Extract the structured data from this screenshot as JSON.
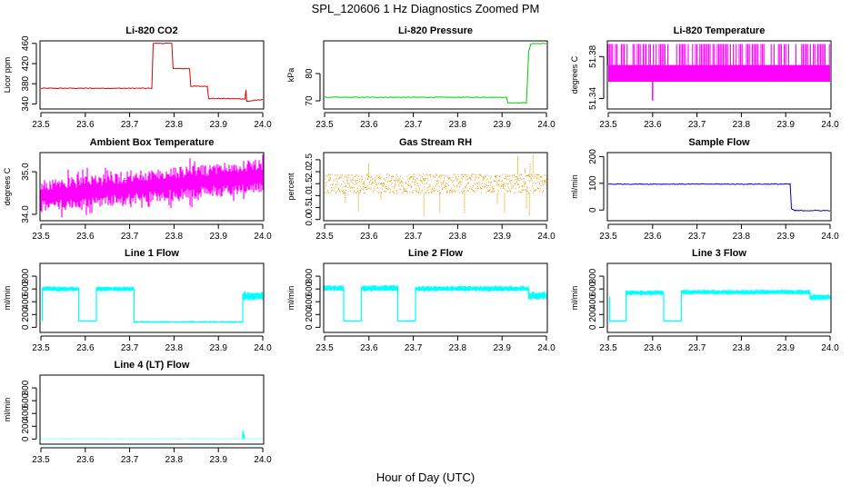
{
  "figure": {
    "title": "SPL_120606  1 Hz Diagnostics Zoomed PM",
    "xlabel": "Hour of Day (UTC)"
  },
  "colors": {
    "red": "#e00000",
    "green": "#00cc00",
    "magenta": "#ff00ff",
    "orange": "#e69a00",
    "blue": "#0000cc",
    "cyan": "#00ffff"
  },
  "chart_data": [
    {
      "type": "line",
      "title": "Li-820 CO2",
      "ylabel": "Licor ppm",
      "color": "red",
      "xlim": [
        23.5,
        24.0
      ],
      "ylim": [
        330,
        465
      ],
      "noise": 0.8,
      "xticks": [
        "23.5",
        "23.6",
        "23.7",
        "23.8",
        "23.9",
        "24.0"
      ],
      "yticks": [
        {
          "v": 340,
          "l": "340"
        },
        {
          "v": 380,
          "l": "380"
        },
        {
          "v": 420,
          "l": "420"
        },
        {
          "v": 460,
          "l": "460"
        }
      ],
      "points": [
        [
          23.5,
          371
        ],
        [
          23.75,
          371
        ],
        [
          23.753,
          460
        ],
        [
          23.795,
          460
        ],
        [
          23.798,
          410
        ],
        [
          23.835,
          410
        ],
        [
          23.838,
          375
        ],
        [
          23.875,
          375
        ],
        [
          23.878,
          351
        ],
        [
          23.96,
          350
        ],
        [
          23.962,
          368
        ],
        [
          23.964,
          345
        ],
        [
          24.0,
          349
        ]
      ]
    },
    {
      "type": "line",
      "title": "Li-820 Pressure",
      "ylabel": "kPa",
      "color": "green",
      "xlim": [
        23.5,
        24.0
      ],
      "ylim": [
        67,
        92
      ],
      "noise": 0.1,
      "xticks": [
        "23.5",
        "23.6",
        "23.7",
        "23.8",
        "23.9",
        "24.0"
      ],
      "yticks": [
        {
          "v": 70,
          "l": "70"
        },
        {
          "v": 80,
          "l": "80"
        }
      ],
      "points": [
        [
          23.5,
          71.3
        ],
        [
          23.91,
          71.3
        ],
        [
          23.913,
          69.3
        ],
        [
          23.955,
          69.3
        ],
        [
          23.96,
          88
        ],
        [
          23.965,
          91
        ],
        [
          24.0,
          91
        ]
      ]
    },
    {
      "type": "band",
      "title": "Li-820 Temperature",
      "ylabel": "degrees C",
      "color": "magenta",
      "xlim": [
        23.5,
        24.0
      ],
      "ylim": [
        51.33,
        51.395
      ],
      "mode": "spiky",
      "xticks": [
        "23.5",
        "23.6",
        "23.7",
        "23.8",
        "23.9",
        "24.0"
      ],
      "yticks": [
        {
          "v": 51.34,
          "l": "51.34"
        },
        {
          "v": 51.38,
          "l": "51.38"
        }
      ],
      "band": [
        [
          23.5,
          51.356,
          51.372
        ],
        [
          24.0,
          51.356,
          51.372
        ]
      ],
      "spike_to": 51.392,
      "dip": [
        23.6,
        51.338
      ]
    },
    {
      "type": "band",
      "title": "Ambient Box Temperature",
      "ylabel": "degrees C",
      "color": "magenta",
      "xlim": [
        23.5,
        24.0
      ],
      "ylim": [
        33.85,
        35.45
      ],
      "mode": "dense",
      "xticks": [
        "23.5",
        "23.6",
        "23.7",
        "23.8",
        "23.9",
        "24.0"
      ],
      "yticks": [
        {
          "v": 34.0,
          "l": "34.0"
        },
        {
          "v": 35.0,
          "l": "35.0"
        }
      ],
      "band": [
        [
          23.5,
          34.05,
          34.8
        ],
        [
          24.0,
          34.5,
          35.3
        ]
      ]
    },
    {
      "type": "band",
      "title": "Gas Stream RH",
      "ylabel": "percent",
      "color": "orange",
      "xlim": [
        23.5,
        24.0
      ],
      "ylim": [
        -0.05,
        2.8
      ],
      "mode": "dots",
      "xticks": [
        "23.5",
        "23.6",
        "23.7",
        "23.8",
        "23.9",
        "24.0"
      ],
      "yticks": [
        {
          "v": 0.0,
          "l": "0.0"
        },
        {
          "v": 0.5,
          "l": "0.5"
        },
        {
          "v": 1.0,
          "l": "1.0"
        },
        {
          "v": 1.5,
          "l": "1.5"
        },
        {
          "v": 2.0,
          "l": "2.0"
        },
        {
          "v": 2.5,
          "l": "2.5"
        }
      ],
      "band": [
        [
          23.5,
          1.1,
          1.9
        ],
        [
          24.0,
          1.1,
          1.9
        ]
      ]
    },
    {
      "type": "line",
      "title": "Sample Flow",
      "ylabel": "ml/min",
      "color": "blue",
      "xlim": [
        23.5,
        24.0
      ],
      "ylim": [
        -40,
        215
      ],
      "noise": 1.5,
      "xticks": [
        "23.5",
        "23.6",
        "23.7",
        "23.8",
        "23.9",
        "24.0"
      ],
      "yticks": [
        {
          "v": 0,
          "l": "0"
        },
        {
          "v": 100,
          "l": "100"
        },
        {
          "v": 200,
          "l": "200"
        }
      ],
      "points": [
        [
          23.5,
          97
        ],
        [
          23.91,
          97
        ],
        [
          23.913,
          5
        ],
        [
          23.92,
          -2
        ],
        [
          24.0,
          -2
        ]
      ]
    },
    {
      "type": "flow",
      "title": "Line 1 Flow",
      "ylabel": "ml/min",
      "color": "cyan",
      "xlim": [
        23.5,
        24.0
      ],
      "ylim": [
        -80,
        1000
      ],
      "xticks": [
        "23.5",
        "23.6",
        "23.7",
        "23.8",
        "23.9",
        "24.0"
      ],
      "yticks": [
        {
          "v": 0,
          "l": "0"
        },
        {
          "v": 200,
          "l": "200"
        },
        {
          "v": 400,
          "l": "400"
        },
        {
          "v": 600,
          "l": "600"
        },
        {
          "v": 800,
          "l": "800"
        }
      ],
      "segments": [
        [
          23.5,
          23.503,
          100,
          100
        ],
        [
          23.503,
          23.585,
          560,
          640
        ],
        [
          23.585,
          23.625,
          85,
          110
        ],
        [
          23.625,
          23.71,
          560,
          640
        ],
        [
          23.71,
          23.955,
          70,
          100
        ],
        [
          23.955,
          24.0,
          420,
          560
        ]
      ]
    },
    {
      "type": "flow",
      "title": "Line 2 Flow",
      "ylabel": "ml/min",
      "color": "cyan",
      "xlim": [
        23.5,
        24.0
      ],
      "ylim": [
        -80,
        1000
      ],
      "xticks": [
        "23.5",
        "23.6",
        "23.7",
        "23.8",
        "23.9",
        "24.0"
      ],
      "yticks": [
        {
          "v": 0,
          "l": "0"
        },
        {
          "v": 200,
          "l": "200"
        },
        {
          "v": 400,
          "l": "400"
        },
        {
          "v": 600,
          "l": "600"
        },
        {
          "v": 800,
          "l": "800"
        }
      ],
      "segments": [
        [
          23.5,
          23.543,
          560,
          660
        ],
        [
          23.543,
          23.583,
          85,
          110
        ],
        [
          23.583,
          23.665,
          560,
          660
        ],
        [
          23.665,
          23.705,
          85,
          110
        ],
        [
          23.705,
          23.96,
          560,
          650
        ],
        [
          23.96,
          24.0,
          430,
          560
        ]
      ]
    },
    {
      "type": "flow",
      "title": "Line 3 Flow",
      "ylabel": "ml/min",
      "color": "cyan",
      "xlim": [
        23.5,
        24.0
      ],
      "ylim": [
        -80,
        1000
      ],
      "xticks": [
        "23.5",
        "23.6",
        "23.7",
        "23.8",
        "23.9",
        "24.0"
      ],
      "yticks": [
        {
          "v": 0,
          "l": "0"
        },
        {
          "v": 200,
          "l": "200"
        },
        {
          "v": 400,
          "l": "400"
        },
        {
          "v": 600,
          "l": "600"
        },
        {
          "v": 800,
          "l": "800"
        }
      ],
      "segments": [
        [
          23.5,
          23.503,
          480,
          480
        ],
        [
          23.503,
          23.54,
          85,
          110
        ],
        [
          23.54,
          23.625,
          500,
          580
        ],
        [
          23.625,
          23.665,
          85,
          110
        ],
        [
          23.665,
          23.955,
          510,
          590
        ],
        [
          23.955,
          24.0,
          420,
          520
        ]
      ]
    },
    {
      "type": "flow",
      "title": "Line 4 (LT) Flow",
      "ylabel": "ml/min",
      "color": "cyan",
      "xlim": [
        23.5,
        24.0
      ],
      "ylim": [
        -80,
        1000
      ],
      "xticks": [
        "23.5",
        "23.6",
        "23.7",
        "23.8",
        "23.9",
        "24.0"
      ],
      "yticks": [
        {
          "v": 0,
          "l": "0"
        },
        {
          "v": 200,
          "l": "200"
        },
        {
          "v": 400,
          "l": "400"
        },
        {
          "v": 600,
          "l": "600"
        },
        {
          "v": 800,
          "l": "800"
        }
      ],
      "segments": [
        [
          23.5,
          23.955,
          0,
          8
        ],
        [
          23.955,
          23.958,
          0,
          140
        ],
        [
          23.958,
          24.0,
          0,
          8
        ]
      ]
    }
  ]
}
